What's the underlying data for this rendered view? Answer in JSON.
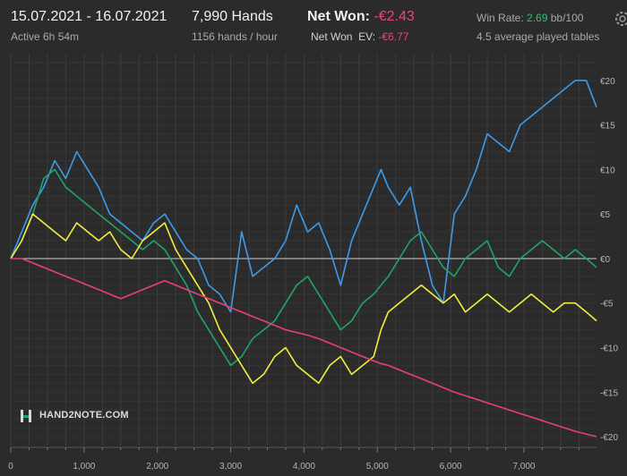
{
  "header": {
    "date_range": "15.07.2021 - 16.07.2021",
    "active": "Active 6h 54m",
    "hands": "7,990 Hands",
    "hands_per_hour": "1156 hands / hour",
    "net_won_label": "Net Won:",
    "net_won_value": "-€2.43",
    "net_won_ev_label": "Net Won  EV:",
    "net_won_ev_value": "-€6.77",
    "win_rate_label": "Win Rate:",
    "win_rate_value": "2.69",
    "win_rate_unit": "bb/100",
    "tables": "4.5 average played tables"
  },
  "logo": {
    "text": "HAND2NOTE.COM",
    "icon": "h2n-logo-icon"
  },
  "colors": {
    "background": "#2b2b2b",
    "grid": "#3d3d3d",
    "zero_line": "#cfcfcf",
    "blue": "#3d9be9",
    "green": "#1fa565",
    "yellow": "#f2ef3d",
    "pink": "#e83f7a",
    "negative_text": "#e8467a",
    "positive_text": "#2fbf71"
  },
  "chart_data": {
    "type": "line",
    "x_ticks": [
      0,
      1000,
      2000,
      3000,
      4000,
      5000,
      6000,
      7000
    ],
    "x_tick_labels": [
      "0",
      "1,000",
      "2,000",
      "3,000",
      "4,000",
      "5,000",
      "6,000",
      "7,000"
    ],
    "y_ticks": [
      20,
      15,
      10,
      5,
      0,
      -5,
      -10,
      -15,
      -20
    ],
    "y_tick_labels": [
      "€20",
      "€15",
      "€10",
      "€5",
      "€0",
      "-€5",
      "-€10",
      "-€15",
      "-€20"
    ],
    "xlim": [
      0,
      7990
    ],
    "ylim": [
      -21,
      23
    ],
    "grid": true,
    "series": [
      {
        "color": "blue",
        "x": [
          0,
          150,
          300,
          450,
          600,
          750,
          900,
          1050,
          1200,
          1350,
          1500,
          1650,
          1800,
          1950,
          2100,
          2250,
          2400,
          2550,
          2700,
          2850,
          3000,
          3150,
          3300,
          3450,
          3600,
          3750,
          3900,
          4050,
          4200,
          4350,
          4500,
          4650,
          4800,
          4950,
          5050,
          5150,
          5300,
          5450,
          5600,
          5750,
          5900,
          6050,
          6200,
          6350,
          6500,
          6650,
          6800,
          6950,
          7100,
          7250,
          7400,
          7550,
          7700,
          7850,
          7990
        ],
        "y": [
          0,
          3,
          6,
          8,
          11,
          9,
          12,
          10,
          8,
          5,
          4,
          3,
          2,
          4,
          5,
          3,
          1,
          0,
          -3,
          -4,
          -6,
          3,
          -2,
          -1,
          0,
          2,
          6,
          3,
          4,
          1,
          -3,
          2,
          5,
          8,
          10,
          8,
          6,
          8,
          2,
          -3,
          -5,
          5,
          7,
          10,
          14,
          13,
          12,
          15,
          16,
          17,
          18,
          19,
          20,
          20,
          17
        ]
      },
      {
        "color": "green",
        "x": [
          0,
          150,
          300,
          450,
          600,
          750,
          900,
          1050,
          1200,
          1350,
          1500,
          1650,
          1800,
          1950,
          2100,
          2250,
          2400,
          2550,
          2700,
          2850,
          3000,
          3150,
          3300,
          3450,
          3600,
          3750,
          3900,
          4050,
          4200,
          4350,
          4500,
          4650,
          4800,
          4950,
          5050,
          5150,
          5300,
          5450,
          5600,
          5750,
          5900,
          6050,
          6200,
          6350,
          6500,
          6650,
          6800,
          6950,
          7100,
          7250,
          7400,
          7550,
          7700,
          7850,
          7990
        ],
        "y": [
          0,
          2,
          5,
          9,
          10,
          8,
          7,
          6,
          5,
          4,
          3,
          2,
          1,
          2,
          1,
          -1,
          -3,
          -6,
          -8,
          -10,
          -12,
          -11,
          -9,
          -8,
          -7,
          -5,
          -3,
          -2,
          -4,
          -6,
          -8,
          -7,
          -5,
          -4,
          -3,
          -2,
          0,
          2,
          3,
          1,
          -1,
          -2,
          0,
          1,
          2,
          -1,
          -2,
          0,
          1,
          2,
          1,
          0,
          1,
          0,
          -1
        ]
      },
      {
        "color": "yellow",
        "x": [
          0,
          150,
          300,
          450,
          600,
          750,
          900,
          1050,
          1200,
          1350,
          1500,
          1650,
          1800,
          1950,
          2100,
          2250,
          2400,
          2550,
          2700,
          2850,
          3000,
          3150,
          3300,
          3450,
          3600,
          3750,
          3900,
          4050,
          4200,
          4350,
          4500,
          4650,
          4800,
          4950,
          5050,
          5150,
          5300,
          5450,
          5600,
          5750,
          5900,
          6050,
          6200,
          6350,
          6500,
          6650,
          6800,
          6950,
          7100,
          7250,
          7400,
          7550,
          7700,
          7850,
          7990
        ],
        "y": [
          0,
          2,
          5,
          4,
          3,
          2,
          4,
          3,
          2,
          3,
          1,
          0,
          2,
          3,
          4,
          1,
          -1,
          -3,
          -5,
          -8,
          -10,
          -12,
          -14,
          -13,
          -11,
          -10,
          -12,
          -13,
          -14,
          -12,
          -11,
          -13,
          -12,
          -11,
          -8,
          -6,
          -5,
          -4,
          -3,
          -4,
          -5,
          -4,
          -6,
          -5,
          -4,
          -5,
          -6,
          -5,
          -4,
          -5,
          -6,
          -5,
          -5,
          -6,
          -7
        ]
      },
      {
        "color": "pink",
        "x": [
          0,
          150,
          300,
          450,
          600,
          750,
          900,
          1050,
          1200,
          1350,
          1500,
          1650,
          1800,
          1950,
          2100,
          2250,
          2400,
          2550,
          2700,
          2850,
          3000,
          3150,
          3300,
          3450,
          3600,
          3750,
          3900,
          4050,
          4200,
          4350,
          4500,
          4650,
          4800,
          4950,
          5050,
          5150,
          5300,
          5450,
          5600,
          5750,
          5900,
          6050,
          6200,
          6350,
          6500,
          6650,
          6800,
          6950,
          7100,
          7250,
          7400,
          7550,
          7700,
          7850,
          7990
        ],
        "y": [
          0,
          0,
          -0.5,
          -1,
          -1.5,
          -2,
          -2.5,
          -3,
          -3.5,
          -4,
          -4.5,
          -4,
          -3.5,
          -3,
          -2.5,
          -3,
          -3.5,
          -4,
          -4.5,
          -5,
          -5.5,
          -6,
          -6.5,
          -7,
          -7.5,
          -8,
          -8.3,
          -8.6,
          -9,
          -9.5,
          -10,
          -10.5,
          -11,
          -11.5,
          -11.8,
          -12,
          -12.5,
          -13,
          -13.5,
          -14,
          -14.5,
          -15,
          -15.4,
          -15.8,
          -16.2,
          -16.6,
          -17,
          -17.4,
          -17.8,
          -18.2,
          -18.6,
          -19,
          -19.4,
          -19.7,
          -20
        ]
      }
    ]
  }
}
